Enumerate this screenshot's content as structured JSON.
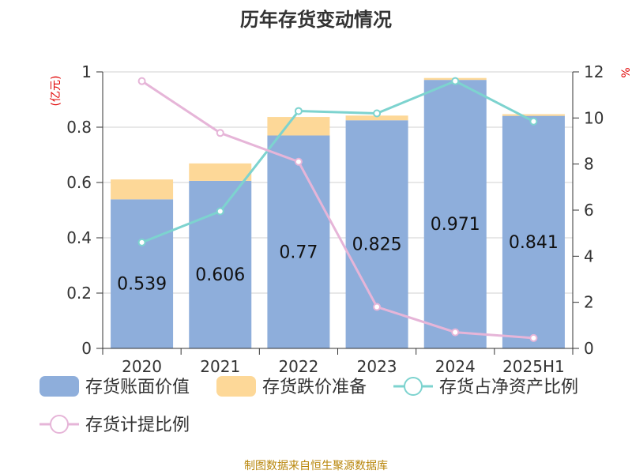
{
  "colors": {
    "book_value": "#8eaedb",
    "impairment": "#fdd898",
    "ratio_net_assets": "#7dd3cf",
    "provision_ratio": "#e6b5d8",
    "unit_text": "#e00000",
    "source_text": "#b8860b"
  },
  "chart_data": {
    "type": "bar",
    "title": "历年存货变动情况",
    "left_axis_unit": "(亿元)",
    "right_axis_unit": "%",
    "categories": [
      "2020",
      "2021",
      "2022",
      "2023",
      "2024",
      "2025H1"
    ],
    "series": [
      {
        "name": "存货账面价值",
        "type": "bar",
        "stack": "inventory",
        "axis": "left",
        "values": [
          0.539,
          0.606,
          0.77,
          0.825,
          0.971,
          0.841
        ],
        "labels": [
          "0.539",
          "0.606",
          "0.77",
          "0.825",
          "0.971",
          "0.841"
        ]
      },
      {
        "name": "存货跌价准备",
        "type": "bar",
        "stack": "inventory",
        "axis": "left",
        "values": [
          0.072,
          0.063,
          0.067,
          0.017,
          0.007,
          0.006
        ]
      },
      {
        "name": "存货占净资产比例",
        "type": "line",
        "axis": "right",
        "values": [
          4.6,
          5.95,
          10.3,
          10.2,
          11.6,
          9.85
        ]
      },
      {
        "name": "存货计提比例",
        "type": "line",
        "axis": "right",
        "values": [
          11.6,
          9.35,
          8.1,
          1.8,
          0.7,
          0.45
        ]
      }
    ],
    "left_axis": {
      "ylim": [
        0,
        1
      ],
      "ticks": [
        "0",
        "0.2",
        "0.4",
        "0.6",
        "0.8",
        "1"
      ]
    },
    "right_axis": {
      "ylim": [
        0,
        12
      ],
      "ticks": [
        "0",
        "2",
        "4",
        "6",
        "8",
        "10",
        "12"
      ]
    },
    "grid": true,
    "legend_position": "bottom"
  },
  "source": "制图数据来自恒生聚源数据库"
}
